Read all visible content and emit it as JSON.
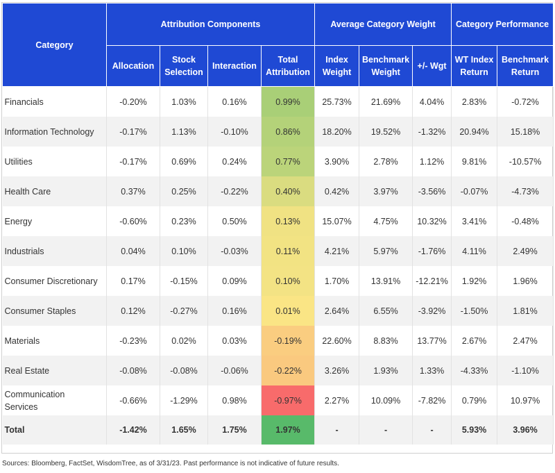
{
  "header": {
    "category": "Category",
    "groups": [
      "Attribution Components",
      "Average Category Weight",
      "Category Performance"
    ],
    "columns": [
      [
        "Allocation"
      ],
      [
        "Stock",
        "Selection"
      ],
      [
        "Interaction"
      ],
      [
        "Total",
        "Attribution"
      ],
      [
        "Index",
        "Weight"
      ],
      [
        "Benchmark",
        "Weight"
      ],
      [
        "+/- Wgt"
      ],
      [
        "WT Index",
        "Return"
      ],
      [
        "Benchmark",
        "Return"
      ]
    ]
  },
  "colors": {
    "header_bg": "#1f49d4",
    "total_attribution_scale": [
      "#58ba6a",
      "#fbe585",
      "#f86b6b"
    ]
  },
  "rows": [
    {
      "category": [
        "Financials"
      ],
      "allocation": "-0.20%",
      "stock_selection": "1.03%",
      "interaction": "0.16%",
      "total_attribution": "0.99%",
      "index_weight": "25.73%",
      "benchmark_weight": "21.69%",
      "wgt_diff": "4.04%",
      "wt_index_return": "2.83%",
      "benchmark_return": "-0.72%",
      "heat": 0.99
    },
    {
      "category": [
        "Information Technology"
      ],
      "allocation": "-0.17%",
      "stock_selection": "1.13%",
      "interaction": "-0.10%",
      "total_attribution": "0.86%",
      "index_weight": "18.20%",
      "benchmark_weight": "19.52%",
      "wgt_diff": "-1.32%",
      "wt_index_return": "20.94%",
      "benchmark_return": "15.18%",
      "heat": 0.86
    },
    {
      "category": [
        "Utilities"
      ],
      "allocation": "-0.17%",
      "stock_selection": "0.69%",
      "interaction": "0.24%",
      "total_attribution": "0.77%",
      "index_weight": "3.90%",
      "benchmark_weight": "2.78%",
      "wgt_diff": "1.12%",
      "wt_index_return": "9.81%",
      "benchmark_return": "-10.57%",
      "heat": 0.77
    },
    {
      "category": [
        "Health Care"
      ],
      "allocation": "0.37%",
      "stock_selection": "0.25%",
      "interaction": "-0.22%",
      "total_attribution": "0.40%",
      "index_weight": "0.42%",
      "benchmark_weight": "3.97%",
      "wgt_diff": "-3.56%",
      "wt_index_return": "-0.07%",
      "benchmark_return": "-4.73%",
      "heat": 0.4
    },
    {
      "category": [
        "Energy"
      ],
      "allocation": "-0.60%",
      "stock_selection": "0.23%",
      "interaction": "0.50%",
      "total_attribution": "0.13%",
      "index_weight": "15.07%",
      "benchmark_weight": "4.75%",
      "wgt_diff": "10.32%",
      "wt_index_return": "3.41%",
      "benchmark_return": "-0.48%",
      "heat": 0.13
    },
    {
      "category": [
        "Industrials"
      ],
      "allocation": "0.04%",
      "stock_selection": "0.10%",
      "interaction": "-0.03%",
      "total_attribution": "0.11%",
      "index_weight": "4.21%",
      "benchmark_weight": "5.97%",
      "wgt_diff": "-1.76%",
      "wt_index_return": "4.11%",
      "benchmark_return": "2.49%",
      "heat": 0.11
    },
    {
      "category": [
        "Consumer Discretionary"
      ],
      "allocation": "0.17%",
      "stock_selection": "-0.15%",
      "interaction": "0.09%",
      "total_attribution": "0.10%",
      "index_weight": "1.70%",
      "benchmark_weight": "13.91%",
      "wgt_diff": "-12.21%",
      "wt_index_return": "1.92%",
      "benchmark_return": "1.96%",
      "heat": 0.1
    },
    {
      "category": [
        "Consumer Staples"
      ],
      "allocation": "0.12%",
      "stock_selection": "-0.27%",
      "interaction": "0.16%",
      "total_attribution": "0.01%",
      "index_weight": "2.64%",
      "benchmark_weight": "6.55%",
      "wgt_diff": "-3.92%",
      "wt_index_return": "-1.50%",
      "benchmark_return": "1.81%",
      "heat": 0.01
    },
    {
      "category": [
        "Materials"
      ],
      "allocation": "-0.23%",
      "stock_selection": "0.02%",
      "interaction": "0.03%",
      "total_attribution": "-0.19%",
      "index_weight": "22.60%",
      "benchmark_weight": "8.83%",
      "wgt_diff": "13.77%",
      "wt_index_return": "2.67%",
      "benchmark_return": "2.47%",
      "heat": -0.19
    },
    {
      "category": [
        "Real Estate"
      ],
      "allocation": "-0.08%",
      "stock_selection": "-0.08%",
      "interaction": "-0.06%",
      "total_attribution": "-0.22%",
      "index_weight": "3.26%",
      "benchmark_weight": "1.93%",
      "wgt_diff": "1.33%",
      "wt_index_return": "-4.33%",
      "benchmark_return": "-1.10%",
      "heat": -0.22
    },
    {
      "category": [
        "Communication",
        "Services"
      ],
      "allocation": "-0.66%",
      "stock_selection": "-1.29%",
      "interaction": "0.98%",
      "total_attribution": "-0.97%",
      "index_weight": "2.27%",
      "benchmark_weight": "10.09%",
      "wgt_diff": "-7.82%",
      "wt_index_return": "0.79%",
      "benchmark_return": "10.97%",
      "heat": -0.97
    }
  ],
  "total": {
    "category": [
      "Total"
    ],
    "allocation": "-1.42%",
    "stock_selection": "1.65%",
    "interaction": "1.75%",
    "total_attribution": "1.97%",
    "index_weight": "-",
    "benchmark_weight": "-",
    "wgt_diff": "-",
    "wt_index_return": "5.93%",
    "benchmark_return": "3.96%",
    "heat": 1.97
  },
  "footnote": "Sources: Bloomberg, FactSet, WisdomTree, as of 3/31/23. Past performance is not indicative of future results."
}
